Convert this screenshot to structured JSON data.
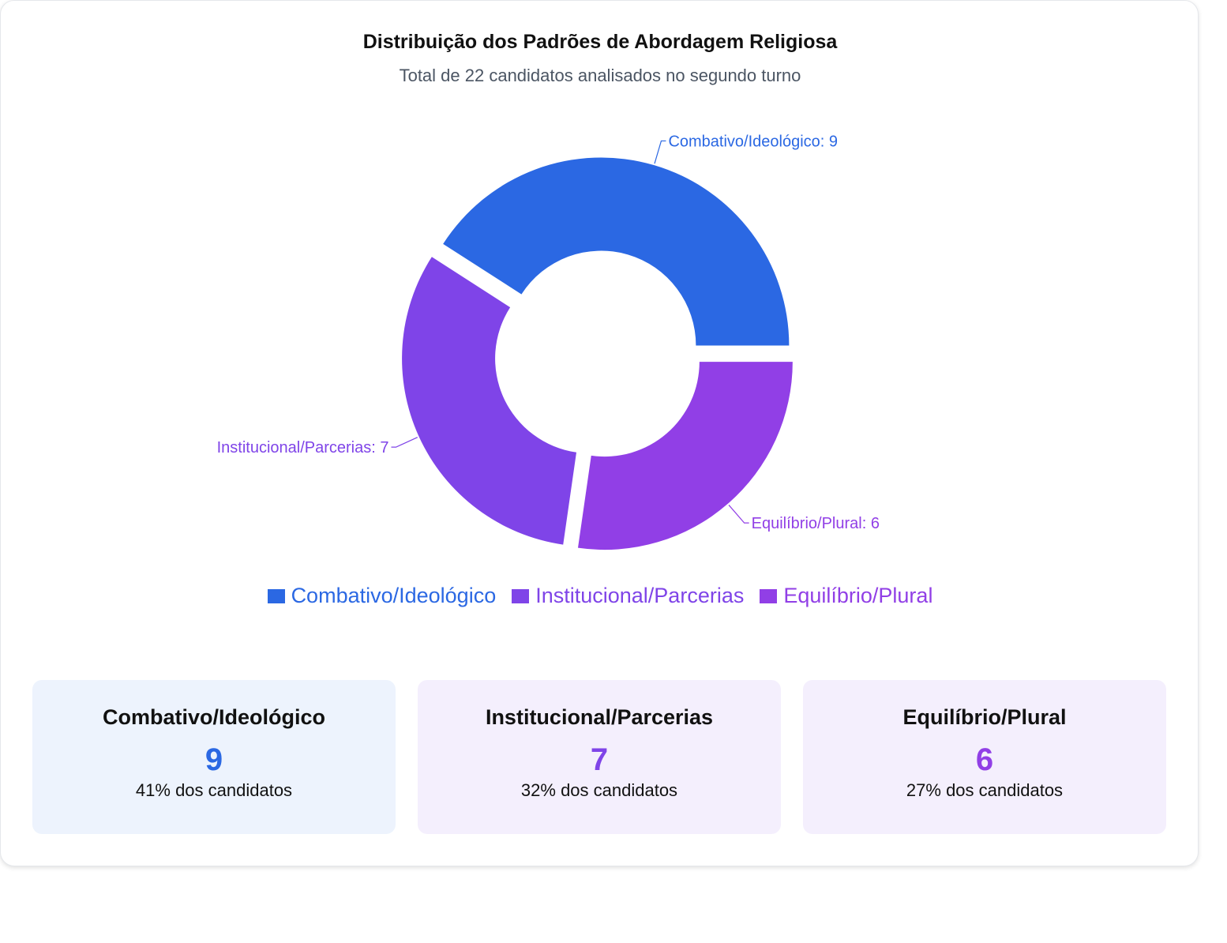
{
  "title": "Distribuição dos Padrões de Abordagem Religiosa",
  "subtitle": "Total de 22 candidatos analisados no segundo turno",
  "chart_data": {
    "type": "pie",
    "variant": "donut",
    "title": "Distribuição dos Padrões de Abordagem Religiosa",
    "subtitle": "Total de 22 candidatos analisados no segundo turno",
    "categories": [
      "Combativo/Ideológico",
      "Institucional/Parcerias",
      "Equilíbrio/Plural"
    ],
    "values": [
      9,
      7,
      6
    ],
    "colors": [
      "#2b68e3",
      "#7f44e8",
      "#913fe6"
    ],
    "slice_labels": [
      "Combativo/Ideológico: 9",
      "Institucional/Parcerias: 7",
      "Equilíbrio/Plural: 6"
    ],
    "legend_position": "bottom"
  },
  "legend": {
    "items": [
      {
        "label": "Combativo/Ideológico",
        "color": "#2b68e3"
      },
      {
        "label": "Institucional/Parcerias",
        "color": "#7f44e8"
      },
      {
        "label": "Equilíbrio/Plural",
        "color": "#913fe6"
      }
    ]
  },
  "stats": [
    {
      "name": "Combativo/Ideológico",
      "value": "9",
      "pct": "41% dos candidatos",
      "color": "#2b68e3",
      "bg": "#edf3fd"
    },
    {
      "name": "Institucional/Parcerias",
      "value": "7",
      "pct": "32% dos candidatos",
      "color": "#7f44e8",
      "bg": "#f4effd"
    },
    {
      "name": "Equilíbrio/Plural",
      "value": "6",
      "pct": "27% dos candidatos",
      "color": "#913fe6",
      "bg": "#f4effd"
    }
  ]
}
